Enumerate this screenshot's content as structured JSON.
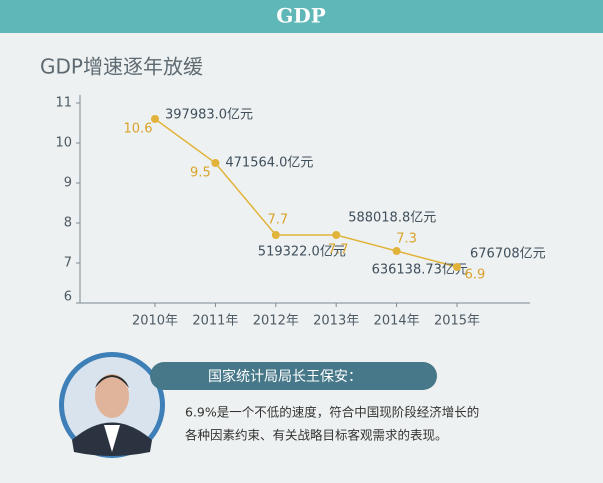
{
  "header": {
    "title": "GDP"
  },
  "chart_data": {
    "type": "line",
    "title": "GDP增速逐年放缓",
    "categories": [
      "2010年",
      "2011年",
      "2012年",
      "2013年",
      "2014年",
      "2015年"
    ],
    "values": [
      10.6,
      9.5,
      7.7,
      7.7,
      7.3,
      6.9
    ],
    "annotations": [
      "397983.0亿元",
      "471564.0亿元",
      "519322.0亿元",
      "588018.8亿元",
      "636138.73亿元",
      "676708亿元"
    ],
    "color": "#e2b33a",
    "ylim": [
      6,
      11
    ],
    "yticks": [
      6,
      7,
      8,
      9,
      10,
      11
    ]
  },
  "speaker": {
    "name": "国家统计局局长王保安：",
    "quote": [
      "6.9%是一个不低的速度，符合中国现阶段经济增长的",
      "各种因素约束、有关战略目标客观需求的表现。"
    ]
  }
}
